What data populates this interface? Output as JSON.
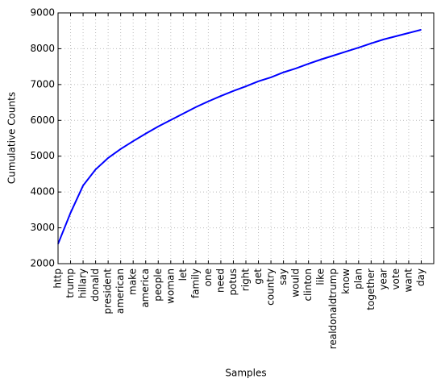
{
  "chart_data": {
    "type": "line",
    "xlabel": "Samples",
    "ylabel": "Cumulative Counts",
    "categories": [
      "http",
      "trump",
      "hillary",
      "donald",
      "president",
      "american",
      "make",
      "america",
      "people",
      "woman",
      "let",
      "family",
      "one",
      "need",
      "potus",
      "right",
      "get",
      "country",
      "say",
      "would",
      "clinton",
      "like",
      "realdonaldtrump",
      "know",
      "plan",
      "together",
      "year",
      "vote",
      "want",
      "day"
    ],
    "series": [
      {
        "color": "#0000ff",
        "values": [
          2550,
          3420,
          4180,
          4630,
          4950,
          5200,
          5420,
          5630,
          5830,
          6010,
          6190,
          6370,
          6530,
          6680,
          6820,
          6950,
          7090,
          7200,
          7340,
          7450,
          7580,
          7700,
          7810,
          7920,
          8030,
          8150,
          8260,
          8350,
          8440,
          8530
        ]
      }
    ],
    "ylim": [
      2000,
      9000
    ],
    "yticks": [
      2000,
      3000,
      4000,
      5000,
      6000,
      7000,
      8000,
      9000
    ],
    "grid": true
  }
}
